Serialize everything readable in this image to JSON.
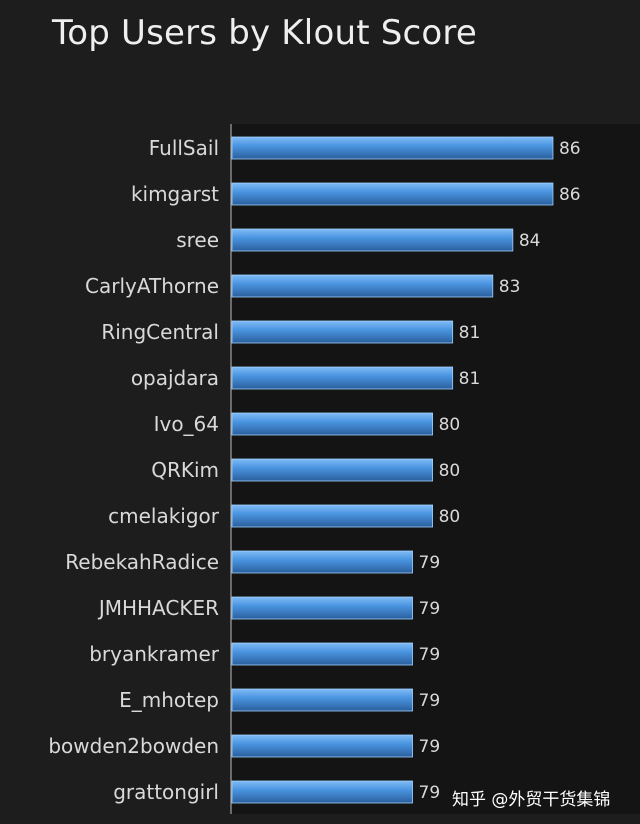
{
  "chart_data": {
    "type": "bar",
    "orientation": "horizontal",
    "title": "Top Users by Klout Score",
    "xlabel": "",
    "ylabel": "",
    "categories": [
      "FullSail",
      "kimgarst",
      "sree",
      "CarlyAThorne",
      "RingCentral",
      "opajdara",
      "Ivo_64",
      "QRKim",
      "cmelakigor",
      "RebekahRadice",
      "JMHHACKER",
      "bryankramer",
      "E_mhotep",
      "bowden2bowden",
      "grattongirl"
    ],
    "values": [
      86,
      86,
      84,
      83,
      81,
      81,
      80,
      80,
      80,
      79,
      79,
      79,
      79,
      79,
      79
    ],
    "data_labels": [
      "86",
      "86",
      "84",
      "83",
      "81",
      "81",
      "80",
      "80",
      "80",
      "79",
      "79",
      "79",
      "79",
      "79",
      "79"
    ],
    "xlim": [
      70,
      87
    ],
    "grid": false,
    "legend": "none",
    "bar_color": "#4a94e0",
    "bar_highlight": "#7fbbf5",
    "bar_shadow": "#2a5f9e",
    "text_color": "#d9d9d9",
    "background": "#1d1d1d"
  },
  "watermark": "知乎 @外贸干货集锦"
}
